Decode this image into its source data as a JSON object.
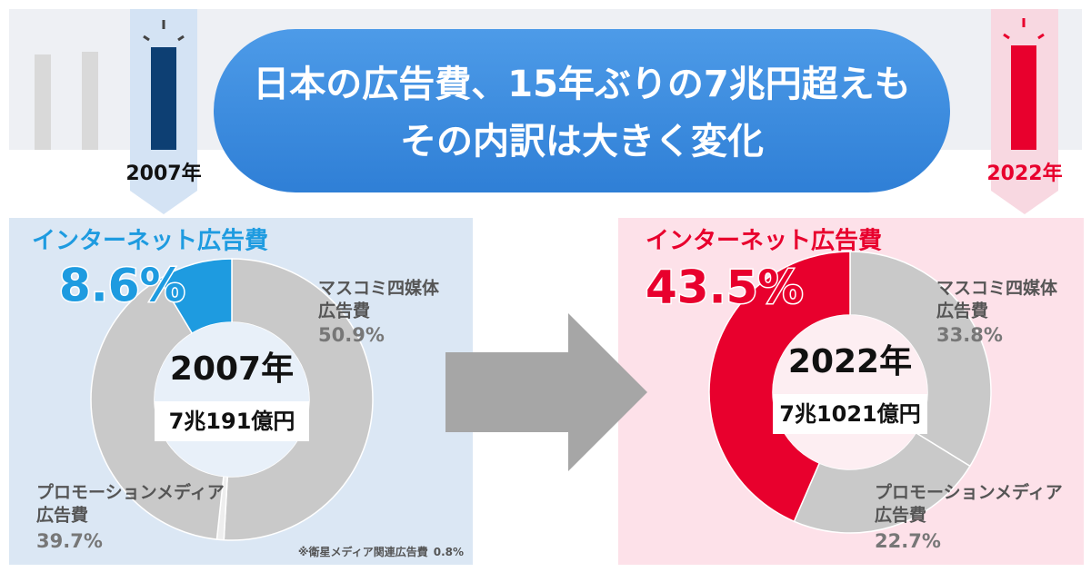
{
  "header": {
    "title_lines": [
      "日本の広告費、15年ぶりの7兆円超えも",
      "その内訳は大きく変化"
    ],
    "year_labels": [
      "2007年",
      "2022年"
    ]
  },
  "chart_data": [
    {
      "type": "donut",
      "center_title": "2007年",
      "center_subtitle": "7兆191億円",
      "categories": [
        [
          "マスコミ四媒体",
          "広告費"
        ],
        [
          "※衛星メディア関連広告費"
        ],
        [
          "プロモーションメディア",
          "広告費"
        ],
        [
          "インターネット広告費"
        ]
      ],
      "values": [
        50.9,
        0.8,
        39.7,
        8.6
      ],
      "value_labels": [
        "50.9%",
        "0.8%",
        "39.7%",
        "8.6%"
      ],
      "colors": [
        "#c9c9c9",
        "#eeeeee",
        "#c9c9c9",
        "#1e9be0"
      ]
    },
    {
      "type": "donut",
      "center_title": "2022年",
      "center_subtitle": "7兆1021億円",
      "categories": [
        [
          "マスコミ四媒体",
          "広告費"
        ],
        [
          "プロモーションメディア",
          "広告費"
        ],
        [
          "インターネット広告費"
        ]
      ],
      "values": [
        33.8,
        22.7,
        43.5
      ],
      "value_labels": [
        "33.8%",
        "22.7%",
        "43.5%"
      ],
      "colors": [
        "#c9c9c9",
        "#c9c9c9",
        "#e8002d"
      ]
    }
  ]
}
